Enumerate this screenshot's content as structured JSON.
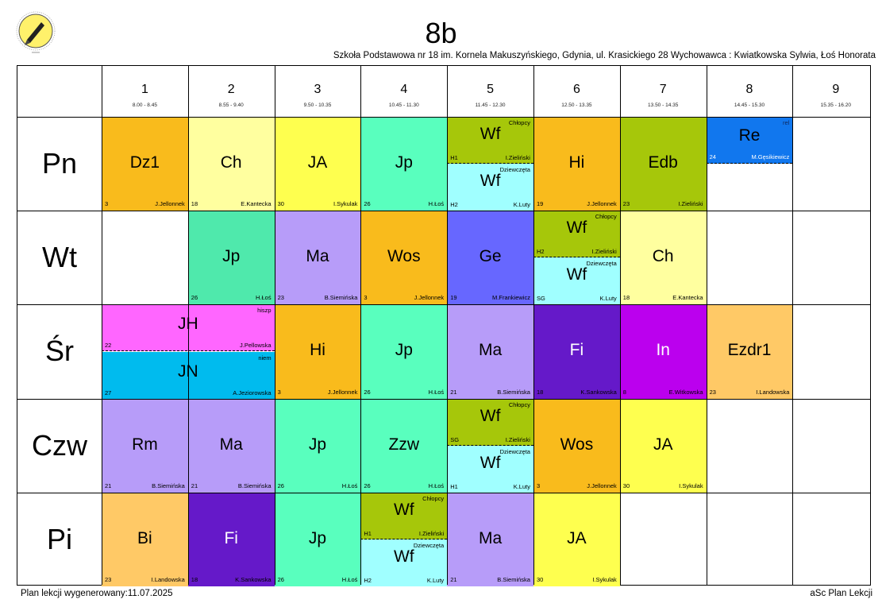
{
  "header": {
    "class_name": "8b",
    "subtitle": "Szkoła Podstawowa nr 18 im. Kornela Makuszyńskiego, Gdynia, ul. Krasickiego 28  Wychowawca : Kwiatkowska Sylwia, Łoś Honorata"
  },
  "footer": {
    "generated": "Plan lekcji wygenerowany:11.07.2025",
    "brand": "aSc Plan Lekcji"
  },
  "periods": [
    {
      "num": "1",
      "time": "8.00 - 8.45"
    },
    {
      "num": "2",
      "time": "8.55 - 9.40"
    },
    {
      "num": "3",
      "time": "9.50 - 10.35"
    },
    {
      "num": "4",
      "time": "10.45 - 11.30"
    },
    {
      "num": "5",
      "time": "11.45 - 12.30"
    },
    {
      "num": "6",
      "time": "12.50 - 13.35"
    },
    {
      "num": "7",
      "time": "13.50 - 14.35"
    },
    {
      "num": "8",
      "time": "14.45 - 15.30"
    },
    {
      "num": "9",
      "time": "15.35 - 16.20"
    }
  ],
  "days": [
    "Pn",
    "Wt",
    "Śr",
    "Czw",
    "Pi"
  ],
  "lessons": [
    {
      "day": 0,
      "period": 0,
      "subject": "Dz1",
      "room": "3",
      "teacher": "J.Jellonnek",
      "color": "#f9bb1c"
    },
    {
      "day": 0,
      "period": 1,
      "subject": "Ch",
      "room": "18",
      "teacher": "E.Kantecka",
      "color": "#ffff9f"
    },
    {
      "day": 0,
      "period": 2,
      "subject": "JA",
      "room": "30",
      "teacher": "I.Sykulak",
      "color": "#feff4f"
    },
    {
      "day": 0,
      "period": 3,
      "subject": "Jp",
      "room": "26",
      "teacher": "H.Łoś",
      "color": "#59ffbe"
    },
    {
      "day": 0,
      "period": 4,
      "split": true,
      "groups": [
        {
          "label": "Chłopcy",
          "subject": "Wf",
          "room": "H1",
          "teacher": "I.Zieliński",
          "color": "#a6c70a"
        },
        {
          "label": "Dziewczęta",
          "subject": "Wf",
          "room": "H2",
          "teacher": "K.Luty",
          "color": "#a0ffff"
        }
      ]
    },
    {
      "day": 0,
      "period": 5,
      "subject": "Hi",
      "room": "19",
      "teacher": "J.Jellonnek",
      "color": "#f9bb1c"
    },
    {
      "day": 0,
      "period": 6,
      "subject": "Edb",
      "room": "23",
      "teacher": "I.Zieliński",
      "color": "#a6c70a"
    },
    {
      "day": 0,
      "period": 7,
      "half": true,
      "label": "rel",
      "subject": "Re",
      "room": "24",
      "teacher": "M.Gęsikiewicz",
      "color": "#1177ee"
    },
    {
      "day": 1,
      "period": 1,
      "subject": "Jp",
      "room": "26",
      "teacher": "H.Łoś",
      "color": "#4fe9ac"
    },
    {
      "day": 1,
      "period": 2,
      "subject": "Ma",
      "room": "23",
      "teacher": "B.Siemińska",
      "color": "#b79cf9"
    },
    {
      "day": 1,
      "period": 3,
      "subject": "Wos",
      "room": "3",
      "teacher": "J.Jellonnek",
      "color": "#f9bb1c"
    },
    {
      "day": 1,
      "period": 4,
      "subject": "Ge",
      "room": "19",
      "teacher": "M.Frankiewicz",
      "color": "#6767ff"
    },
    {
      "day": 1,
      "period": 5,
      "split": true,
      "groups": [
        {
          "label": "Chłopcy",
          "subject": "Wf",
          "room": "H2",
          "teacher": "I.Zieliński",
          "color": "#a6c70a"
        },
        {
          "label": "Dziewczęta",
          "subject": "Wf",
          "room": "SG",
          "teacher": "K.Luty",
          "color": "#a0ffff"
        }
      ]
    },
    {
      "day": 1,
      "period": 6,
      "subject": "Ch",
      "room": "18",
      "teacher": "E.Kantecka",
      "color": "#ffff9f"
    },
    {
      "day": 2,
      "span": true,
      "periods": [
        0,
        1
      ],
      "groups": [
        {
          "label": "hiszp",
          "subject": "JH",
          "room": "22",
          "teacher": "J.Pellowska",
          "color": "#ff66ff"
        },
        {
          "label": "niem",
          "subject": "JN",
          "room": "27",
          "teacher": "A.Jeziorowska",
          "color": "#00bbee"
        }
      ]
    },
    {
      "day": 2,
      "period": 2,
      "subject": "Hi",
      "room": "3",
      "teacher": "J.Jellonnek",
      "color": "#f9bb1c"
    },
    {
      "day": 2,
      "period": 3,
      "subject": "Jp",
      "room": "26",
      "teacher": "H.Łoś",
      "color": "#59ffbe"
    },
    {
      "day": 2,
      "period": 4,
      "subject": "Ma",
      "room": "21",
      "teacher": "B.Siemińska",
      "color": "#b79cf9"
    },
    {
      "day": 2,
      "period": 5,
      "subject": "Fi",
      "room": "18",
      "teacher": "K.Sankowska",
      "color": "#6519c9",
      "light": true
    },
    {
      "day": 2,
      "period": 6,
      "subject": "In",
      "room": "8",
      "teacher": "E.Witkowska",
      "color": "#bb00ee",
      "light": true
    },
    {
      "day": 2,
      "period": 7,
      "subject": "Ezdr1",
      "room": "23",
      "teacher": "I.Landowska",
      "color": "#ffc966"
    },
    {
      "day": 3,
      "period": 0,
      "subject": "Rm",
      "room": "21",
      "teacher": "B.Siemińska",
      "color": "#b79cf9"
    },
    {
      "day": 3,
      "period": 1,
      "subject": "Ma",
      "room": "21",
      "teacher": "B.Siemińska",
      "color": "#b79cf9"
    },
    {
      "day": 3,
      "period": 2,
      "subject": "Jp",
      "room": "26",
      "teacher": "H.Łoś",
      "color": "#59ffbe"
    },
    {
      "day": 3,
      "period": 3,
      "subject": "Zzw",
      "room": "26",
      "teacher": "H.Łoś",
      "color": "#59ffbe"
    },
    {
      "day": 3,
      "period": 4,
      "split": true,
      "groups": [
        {
          "label": "Chłopcy",
          "subject": "Wf",
          "room": "SG",
          "teacher": "I.Zieliński",
          "color": "#a6c70a"
        },
        {
          "label": "Dziewczęta",
          "subject": "Wf",
          "room": "H1",
          "teacher": "K.Luty",
          "color": "#a0ffff"
        }
      ]
    },
    {
      "day": 3,
      "period": 5,
      "subject": "Wos",
      "room": "3",
      "teacher": "J.Jellonnek",
      "color": "#f9bb1c"
    },
    {
      "day": 3,
      "period": 6,
      "subject": "JA",
      "room": "30",
      "teacher": "I.Sykulak",
      "color": "#feff4f"
    },
    {
      "day": 4,
      "period": 0,
      "subject": "Bi",
      "room": "23",
      "teacher": "I.Landowska",
      "color": "#ffc966"
    },
    {
      "day": 4,
      "period": 1,
      "subject": "Fi",
      "room": "18",
      "teacher": "K.Sankowska",
      "color": "#6519c9",
      "light": true
    },
    {
      "day": 4,
      "period": 2,
      "subject": "Jp",
      "room": "26",
      "teacher": "H.Łoś",
      "color": "#59ffbe"
    },
    {
      "day": 4,
      "period": 3,
      "split": true,
      "groups": [
        {
          "label": "Chłopcy",
          "subject": "Wf",
          "room": "H1",
          "teacher": "I.Zieliński",
          "color": "#a6c70a"
        },
        {
          "label": "Dziewczęta",
          "subject": "Wf",
          "room": "H2",
          "teacher": "K.Luty",
          "color": "#a0ffff"
        }
      ]
    },
    {
      "day": 4,
      "period": 4,
      "subject": "Ma",
      "room": "21",
      "teacher": "B.Siemińska",
      "color": "#b79cf9"
    },
    {
      "day": 4,
      "period": 5,
      "subject": "JA",
      "room": "30",
      "teacher": "I.Sykulak",
      "color": "#feff4f"
    }
  ]
}
